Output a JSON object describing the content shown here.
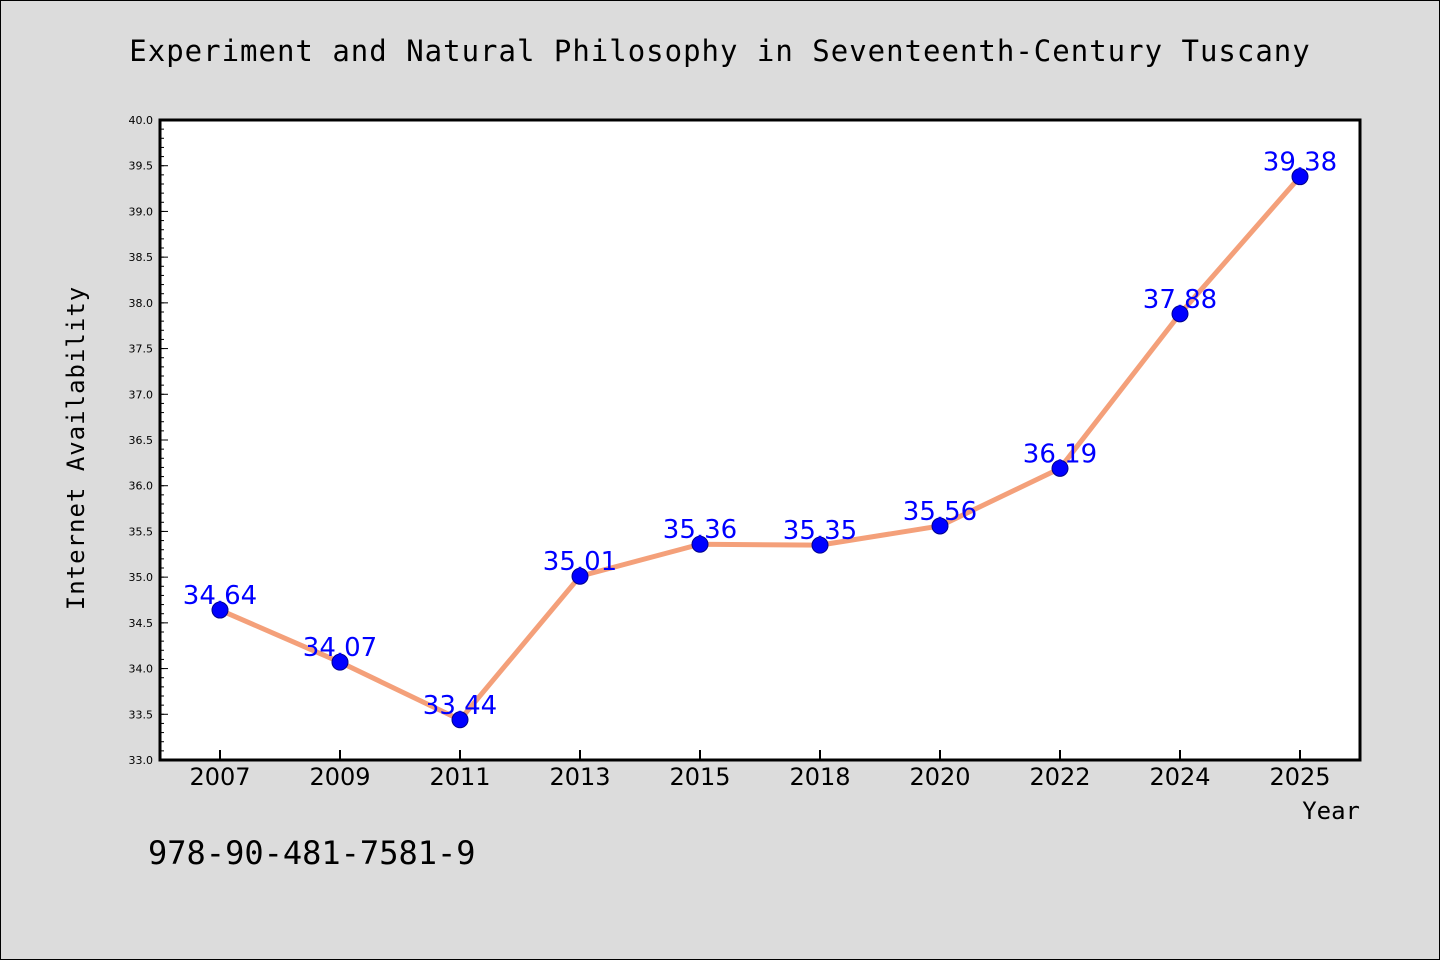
{
  "chart_data": {
    "type": "line",
    "title": "Experiment and Natural Philosophy in Seventeenth-Century Tuscany",
    "xlabel": "Year",
    "ylabel": "Internet Availability",
    "categories": [
      "2007",
      "2009",
      "2011",
      "2013",
      "2015",
      "2018",
      "2020",
      "2022",
      "2024",
      "2025"
    ],
    "series": [
      {
        "values": [
          34.64,
          34.07,
          33.44,
          35.01,
          35.36,
          35.35,
          35.56,
          36.19,
          37.88,
          39.38
        ]
      }
    ],
    "data_labels": [
      "34.64",
      "34.07",
      "33.44",
      "35.01",
      "35.36",
      "35.35",
      "35.56",
      "36.19",
      "37.88",
      "39.38"
    ],
    "ylim": [
      33.0,
      40.0
    ],
    "yticks": [
      "33.0",
      "33.5",
      "34.0",
      "34.5",
      "35.0",
      "35.5",
      "36.0",
      "36.5",
      "37.0",
      "37.5",
      "38.0",
      "38.5",
      "39.0",
      "39.5",
      "40.0"
    ],
    "grid": false,
    "colors": {
      "line": "#f4a07a",
      "marker": "#0000ff",
      "label": "#0000ff",
      "background": "#dcdcdc",
      "plot_background": "#ffffff"
    }
  },
  "footer": {
    "code": "978-90-481-7581-9"
  }
}
